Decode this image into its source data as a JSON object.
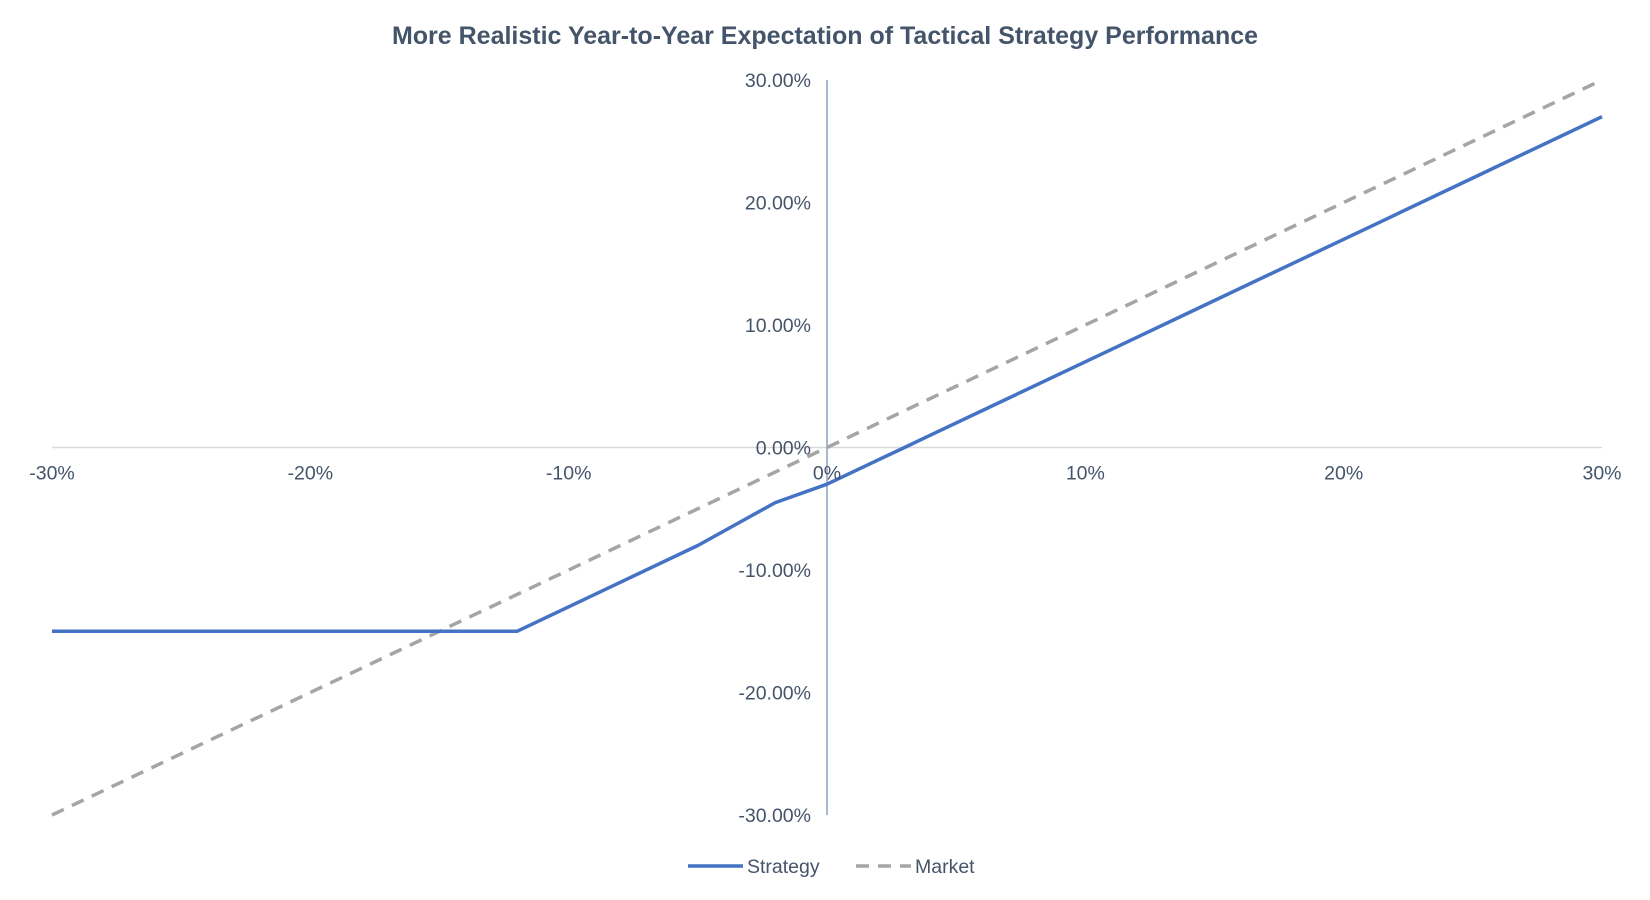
{
  "chart_data": {
    "type": "line",
    "title": "More Realistic Year-to-Year Expectation of Tactical Strategy Performance",
    "xlabel": "",
    "ylabel": "",
    "xlim": [
      -0.3,
      0.3
    ],
    "ylim": [
      -0.3,
      0.3
    ],
    "x_ticks": [
      -0.3,
      -0.2,
      -0.1,
      0.0,
      0.1,
      0.2,
      0.3
    ],
    "x_tick_labels": [
      "-30%",
      "-20%",
      "-10%",
      "0%",
      "10%",
      "20%",
      "30%"
    ],
    "y_ticks": [
      0.3,
      0.2,
      0.1,
      0.0,
      -0.1,
      -0.2,
      -0.3
    ],
    "y_tick_labels": [
      "30.00%",
      "20.00%",
      "10.00%",
      "0.00%",
      "-10.00%",
      "-20.00%",
      "-30.00%"
    ],
    "grid": false,
    "axes_cross_at_zero": true,
    "legend_position": "bottom",
    "series": [
      {
        "name": "Strategy",
        "style": "solid",
        "color": "#4472c4",
        "x": [
          -0.3,
          -0.12,
          -0.1,
          -0.08,
          -0.05,
          -0.02,
          0.0,
          0.03,
          0.04,
          0.07,
          0.1,
          0.12,
          0.15,
          0.2,
          0.25,
          0.3
        ],
        "y": [
          -0.15,
          -0.15,
          -0.13,
          -0.11,
          -0.08,
          -0.045,
          -0.03,
          0.0,
          0.01,
          0.04,
          0.07,
          0.09,
          0.12,
          0.17,
          0.22,
          0.27
        ]
      },
      {
        "name": "Market",
        "style": "dashed",
        "color": "#a5a5a5",
        "x": [
          -0.3,
          0.3
        ],
        "y": [
          -0.3,
          0.3
        ]
      }
    ]
  }
}
